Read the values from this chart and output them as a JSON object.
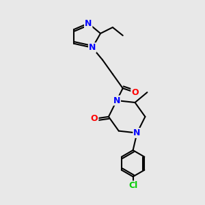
{
  "background_color": "#e8e8e8",
  "bond_color": "#000000",
  "bond_width": 1.5,
  "n_color": "#0000ff",
  "o_color": "#ff0000",
  "cl_color": "#00cc00",
  "font_size": 9,
  "fig_width": 3.0,
  "fig_height": 3.0,
  "xlim": [
    0,
    10
  ],
  "ylim": [
    0,
    10
  ]
}
